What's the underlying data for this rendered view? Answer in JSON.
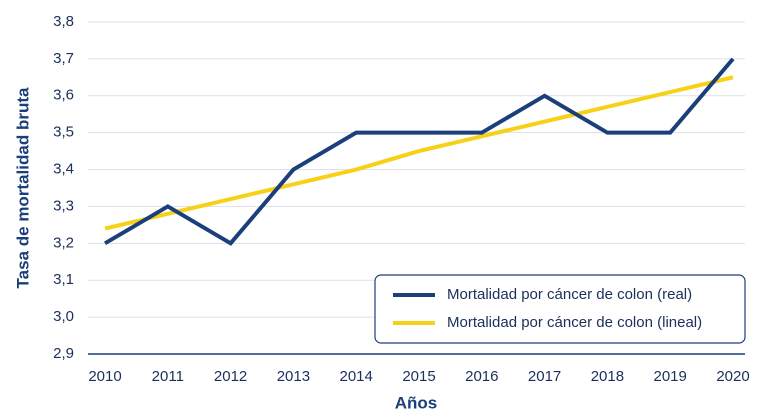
{
  "chart_data": {
    "type": "line",
    "x_label": "Años",
    "y_label": "Tasa de mortalidad bruta",
    "categories": [
      "2010",
      "2011",
      "2012",
      "2013",
      "2014",
      "2015",
      "2016",
      "2017",
      "2018",
      "2019",
      "2020"
    ],
    "series": [
      {
        "name": "Mortalidad por cáncer de colon (real)",
        "color": "#1b3f7a",
        "values": [
          3.2,
          3.3,
          3.2,
          3.4,
          3.5,
          3.5,
          3.5,
          3.6,
          3.5,
          3.5,
          3.7
        ]
      },
      {
        "name": "Mortalidad por cáncer de colon (lineal)",
        "color": "#f7d117",
        "values": [
          3.24,
          3.28,
          3.32,
          3.36,
          3.4,
          3.45,
          3.49,
          3.53,
          3.57,
          3.61,
          3.65
        ]
      }
    ],
    "ylim": [
      2.9,
      3.8
    ],
    "yticks": [
      {
        "value": 2.9,
        "label": "2,9"
      },
      {
        "value": 3.0,
        "label": "3,0"
      },
      {
        "value": 3.1,
        "label": "3,1"
      },
      {
        "value": 3.2,
        "label": "3,2"
      },
      {
        "value": 3.3,
        "label": "3,3"
      },
      {
        "value": 3.4,
        "label": "3,4"
      },
      {
        "value": 3.5,
        "label": "3,5"
      },
      {
        "value": 3.6,
        "label": "3,6"
      },
      {
        "value": 3.7,
        "label": "3,7"
      },
      {
        "value": 3.8,
        "label": "3,8"
      }
    ],
    "grid": true,
    "legend": "lower right"
  }
}
